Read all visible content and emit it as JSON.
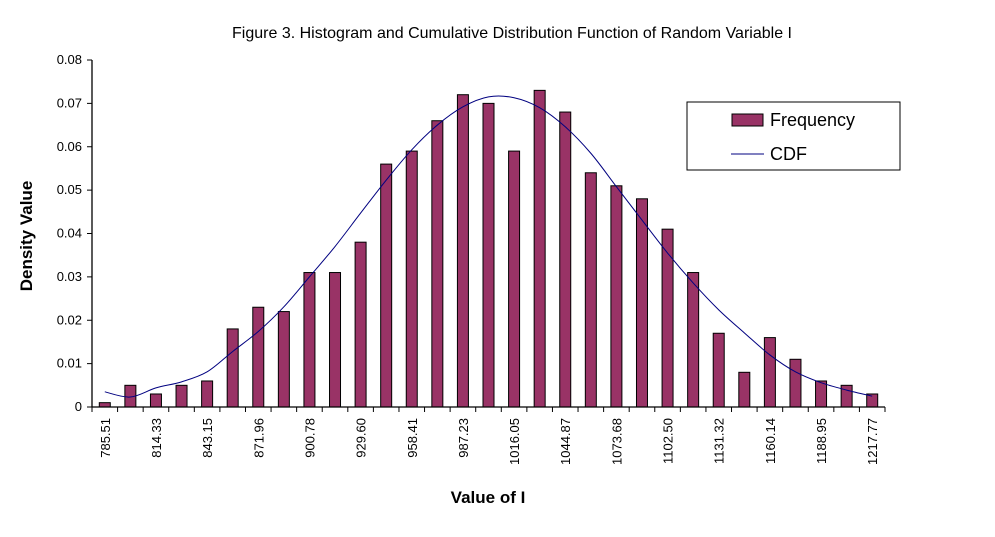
{
  "chart_data": {
    "type": "bar",
    "title": "Figure 3.  Histogram and Cumulative Distribution Function of Random Variable I",
    "xlabel": "Value of I",
    "ylabel": "Density Value",
    "ylim": [
      0,
      0.08
    ],
    "yticks": [
      "0",
      "0.01",
      "0.02",
      "0.03",
      "0.04",
      "0.05",
      "0.06",
      "0.07",
      "0.08"
    ],
    "categories": [
      "785.51",
      "",
      "814.33",
      "",
      "843.15",
      "",
      "871.96",
      "",
      "900.78",
      "",
      "929.60",
      "",
      "958.41",
      "",
      "987.23",
      "",
      "1016.05",
      "",
      "1044.87",
      "",
      "1073.68",
      "",
      "1102.50",
      "",
      "1131.32",
      "",
      "1160.14",
      "",
      "1188.95",
      "",
      "1217.77"
    ],
    "series": [
      {
        "name": "Frequency",
        "type": "bar",
        "color": "#993366",
        "values": [
          0.001,
          0.005,
          0.003,
          0.005,
          0.006,
          0.018,
          0.023,
          0.022,
          0.031,
          0.031,
          0.038,
          0.056,
          0.059,
          0.066,
          0.072,
          0.07,
          0.059,
          0.073,
          0.068,
          0.054,
          0.051,
          0.048,
          0.041,
          0.031,
          0.017,
          0.008,
          0.016,
          0.011,
          0.006,
          0.005,
          0.003
        ]
      },
      {
        "name": "CDF",
        "type": "line",
        "color": "#000080",
        "values": [
          0.0035,
          0.0023,
          0.0044,
          0.0058,
          0.0081,
          0.0128,
          0.0174,
          0.0231,
          0.03,
          0.037,
          0.0447,
          0.0523,
          0.0593,
          0.065,
          0.0692,
          0.0715,
          0.0713,
          0.069,
          0.0646,
          0.0585,
          0.0508,
          0.0431,
          0.0355,
          0.0286,
          0.0224,
          0.0171,
          0.012,
          0.0081,
          0.0056,
          0.0039,
          0.0025
        ]
      }
    ],
    "legend": "right",
    "grid": false
  }
}
